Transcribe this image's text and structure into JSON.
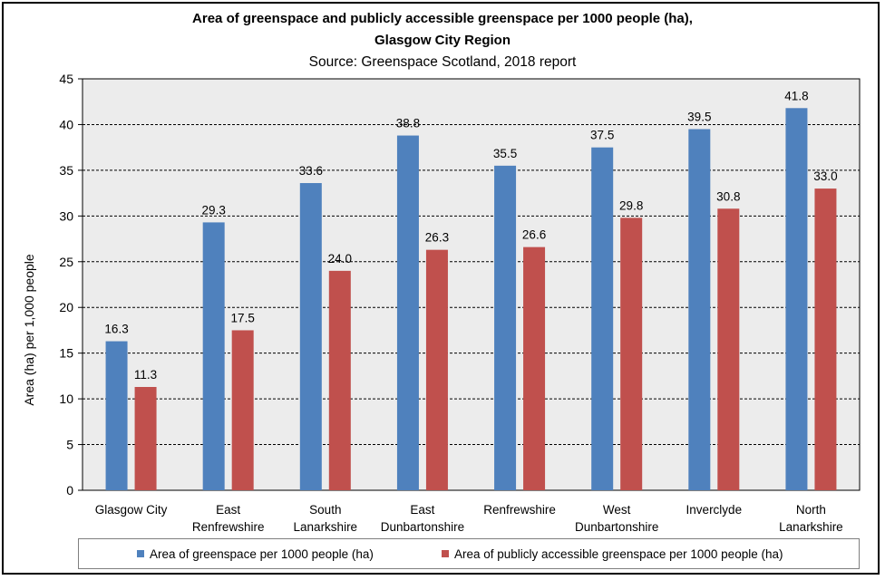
{
  "chart_data": {
    "type": "bar",
    "title_line1": "Area of greenspace and publicly accessible greenspace per 1000 people (ha),",
    "title_line2": "Glasgow City Region",
    "subtitle": "Source: Greenspace Scotland, 2018 report",
    "ylabel": "Area (ha) per 1,000 people",
    "xlabel": "",
    "ylim": [
      0,
      45
    ],
    "yticks": [
      0,
      5,
      10,
      15,
      20,
      25,
      30,
      35,
      40,
      45
    ],
    "grid": true,
    "legend_position": "bottom",
    "categories": [
      [
        "Glasgow City"
      ],
      [
        "East",
        "Renfrewshire"
      ],
      [
        "South",
        "Lanarkshire"
      ],
      [
        "East",
        "Dunbartonshire"
      ],
      [
        "Renfrewshire"
      ],
      [
        "West",
        "Dunbartonshire"
      ],
      [
        "Inverclyde"
      ],
      [
        "North",
        "Lanarkshire"
      ]
    ],
    "series": [
      {
        "name": "Area of greenspace per 1000 people (ha)",
        "color": "#4f81bd",
        "values": [
          16.3,
          29.3,
          33.6,
          38.8,
          35.5,
          37.5,
          39.5,
          41.8
        ],
        "labels": [
          "16.3",
          "29.3",
          "33.6",
          "38.8",
          "35.5",
          "37.5",
          "39.5",
          "41.8"
        ]
      },
      {
        "name": "Area of publicly accessible greenspace per 1000 people (ha)",
        "color": "#c0504d",
        "values": [
          11.3,
          17.5,
          24.0,
          26.3,
          26.6,
          29.8,
          30.8,
          33.0
        ],
        "labels": [
          "11.3",
          "17.5",
          "24.0",
          "26.3",
          "26.6",
          "29.8",
          "30.8",
          "33.0"
        ]
      }
    ],
    "plot_background": "#ececec"
  }
}
